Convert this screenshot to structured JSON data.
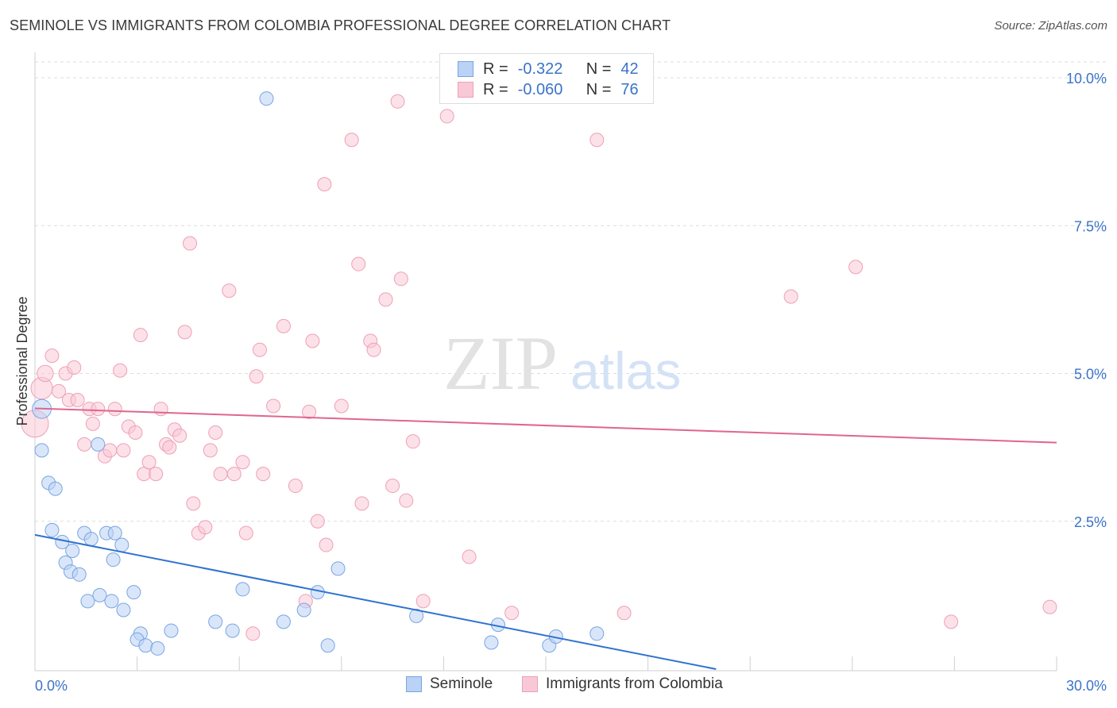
{
  "title": "SEMINOLE VS IMMIGRANTS FROM COLOMBIA PROFESSIONAL DEGREE CORRELATION CHART",
  "source": "Source: ZipAtlas.com",
  "watermark": {
    "zip": "ZIP",
    "atlas": "atlas"
  },
  "colors": {
    "seminole_fill": "#b9d2f5",
    "seminole_stroke": "#7aa5e0",
    "seminole_line": "#2f72d0",
    "colombia_fill": "#f9c8d6",
    "colombia_stroke": "#eea0b8",
    "colombia_line": "#e0658f",
    "axis_label": "#3b73c8"
  },
  "stats": {
    "rows": [
      {
        "r_label": "R =",
        "r_value": "-0.322",
        "n_label": "N =",
        "n_value": "42"
      },
      {
        "r_label": "R =",
        "r_value": "-0.060",
        "n_label": "N =",
        "n_value": "76"
      }
    ]
  },
  "legend": {
    "seminole": "Seminole",
    "colombia": "Immigrants from Colombia"
  },
  "chart_data": {
    "type": "scatter",
    "xlabel": "",
    "ylabel": "Professional Degree",
    "xlim": [
      0,
      30
    ],
    "ylim": [
      0,
      10.5
    ],
    "x_tick_labels": [
      "0.0%",
      "30.0%"
    ],
    "y_ticks": [
      2.5,
      5.0,
      7.5,
      10.0
    ],
    "y_tick_labels": [
      "2.5%",
      "5.0%",
      "7.5%",
      "10.0%"
    ],
    "grid": true,
    "series": [
      {
        "name": "Seminole",
        "trend": {
          "x0": 0,
          "y0": 2.27,
          "x1": 20.0,
          "y1": 0.0
        },
        "points": [
          [
            0.2,
            4.4,
            14
          ],
          [
            0.2,
            3.7,
            10
          ],
          [
            0.4,
            3.15,
            10
          ],
          [
            0.6,
            3.05,
            10
          ],
          [
            0.5,
            2.35,
            10
          ],
          [
            0.8,
            2.15,
            10
          ],
          [
            1.1,
            2.0,
            10
          ],
          [
            0.9,
            1.8,
            10
          ],
          [
            1.05,
            1.65,
            10
          ],
          [
            1.3,
            1.6,
            10
          ],
          [
            1.45,
            2.3,
            10
          ],
          [
            1.65,
            2.2,
            10
          ],
          [
            1.85,
            3.8,
            10
          ],
          [
            2.1,
            2.3,
            10
          ],
          [
            2.35,
            2.3,
            10
          ],
          [
            2.55,
            2.1,
            10
          ],
          [
            2.3,
            1.85,
            10
          ],
          [
            1.55,
            1.15,
            10
          ],
          [
            1.9,
            1.25,
            10
          ],
          [
            2.25,
            1.15,
            10
          ],
          [
            2.6,
            1.0,
            10
          ],
          [
            2.9,
            1.3,
            10
          ],
          [
            3.1,
            0.6,
            10
          ],
          [
            3.0,
            0.5,
            10
          ],
          [
            3.25,
            0.4,
            10
          ],
          [
            3.6,
            0.35,
            10
          ],
          [
            4.0,
            0.65,
            10
          ],
          [
            5.3,
            0.8,
            10
          ],
          [
            5.8,
            0.65,
            10
          ],
          [
            6.1,
            1.35,
            10
          ],
          [
            6.8,
            9.65,
            10
          ],
          [
            7.3,
            0.8,
            10
          ],
          [
            7.9,
            1.0,
            10
          ],
          [
            8.3,
            1.3,
            10
          ],
          [
            8.6,
            0.4,
            10
          ],
          [
            8.9,
            1.7,
            10
          ],
          [
            11.2,
            0.9,
            10
          ],
          [
            13.4,
            0.45,
            10
          ],
          [
            13.6,
            0.75,
            10
          ],
          [
            15.1,
            0.4,
            10
          ],
          [
            15.3,
            0.55,
            10
          ],
          [
            16.5,
            0.6,
            10
          ]
        ]
      },
      {
        "name": "Immigrants from Colombia",
        "trend": {
          "x0": 0,
          "y0": 4.41,
          "x1": 30.0,
          "y1": 3.83
        },
        "points": [
          [
            0.0,
            4.15,
            20
          ],
          [
            0.2,
            4.75,
            16
          ],
          [
            0.3,
            5.0,
            12
          ],
          [
            0.5,
            5.3,
            10
          ],
          [
            0.7,
            4.7,
            10
          ],
          [
            0.9,
            5.0,
            10
          ],
          [
            1.0,
            4.55,
            10
          ],
          [
            1.15,
            5.1,
            10
          ],
          [
            1.25,
            4.55,
            10
          ],
          [
            1.45,
            3.8,
            10
          ],
          [
            1.6,
            4.4,
            10
          ],
          [
            1.7,
            4.15,
            10
          ],
          [
            1.85,
            4.4,
            10
          ],
          [
            2.05,
            3.6,
            10
          ],
          [
            2.2,
            3.7,
            10
          ],
          [
            2.35,
            4.4,
            10
          ],
          [
            2.5,
            5.05,
            10
          ],
          [
            2.6,
            3.7,
            10
          ],
          [
            2.75,
            4.1,
            10
          ],
          [
            2.95,
            4.0,
            10
          ],
          [
            3.1,
            5.65,
            10
          ],
          [
            3.2,
            3.3,
            10
          ],
          [
            3.35,
            3.5,
            10
          ],
          [
            3.55,
            3.3,
            10
          ],
          [
            3.7,
            4.4,
            10
          ],
          [
            3.85,
            3.8,
            10
          ],
          [
            3.95,
            3.75,
            10
          ],
          [
            4.1,
            4.05,
            10
          ],
          [
            4.25,
            3.95,
            10
          ],
          [
            4.4,
            5.7,
            10
          ],
          [
            4.55,
            7.2,
            10
          ],
          [
            4.65,
            2.8,
            10
          ],
          [
            4.8,
            2.3,
            10
          ],
          [
            5.0,
            2.4,
            10
          ],
          [
            5.15,
            3.7,
            10
          ],
          [
            5.3,
            4.0,
            10
          ],
          [
            5.45,
            3.3,
            10
          ],
          [
            5.7,
            6.4,
            10
          ],
          [
            5.85,
            3.3,
            10
          ],
          [
            6.1,
            3.5,
            10
          ],
          [
            6.2,
            2.3,
            10
          ],
          [
            6.4,
            0.6,
            10
          ],
          [
            6.5,
            4.95,
            10
          ],
          [
            6.6,
            5.4,
            10
          ],
          [
            6.7,
            3.3,
            10
          ],
          [
            7.0,
            4.45,
            10
          ],
          [
            7.3,
            5.8,
            10
          ],
          [
            7.65,
            3.1,
            10
          ],
          [
            7.95,
            1.15,
            10
          ],
          [
            8.05,
            4.35,
            10
          ],
          [
            8.15,
            5.55,
            10
          ],
          [
            8.3,
            2.5,
            10
          ],
          [
            8.5,
            8.2,
            10
          ],
          [
            8.55,
            2.1,
            10
          ],
          [
            9.0,
            4.45,
            10
          ],
          [
            9.3,
            8.95,
            10
          ],
          [
            9.5,
            6.85,
            10
          ],
          [
            9.6,
            2.8,
            10
          ],
          [
            9.85,
            5.55,
            10
          ],
          [
            9.95,
            5.4,
            10
          ],
          [
            10.3,
            6.25,
            10
          ],
          [
            10.5,
            3.1,
            10
          ],
          [
            10.65,
            9.6,
            10
          ],
          [
            10.75,
            6.6,
            10
          ],
          [
            10.9,
            2.85,
            10
          ],
          [
            11.1,
            3.85,
            10
          ],
          [
            11.4,
            1.15,
            10
          ],
          [
            12.1,
            9.35,
            10
          ],
          [
            12.75,
            1.9,
            10
          ],
          [
            14.0,
            0.95,
            10
          ],
          [
            16.5,
            8.95,
            10
          ],
          [
            17.3,
            0.95,
            10
          ],
          [
            22.2,
            6.3,
            10
          ],
          [
            24.1,
            6.8,
            10
          ],
          [
            26.9,
            0.8,
            10
          ],
          [
            29.8,
            1.05,
            10
          ]
        ]
      }
    ]
  }
}
